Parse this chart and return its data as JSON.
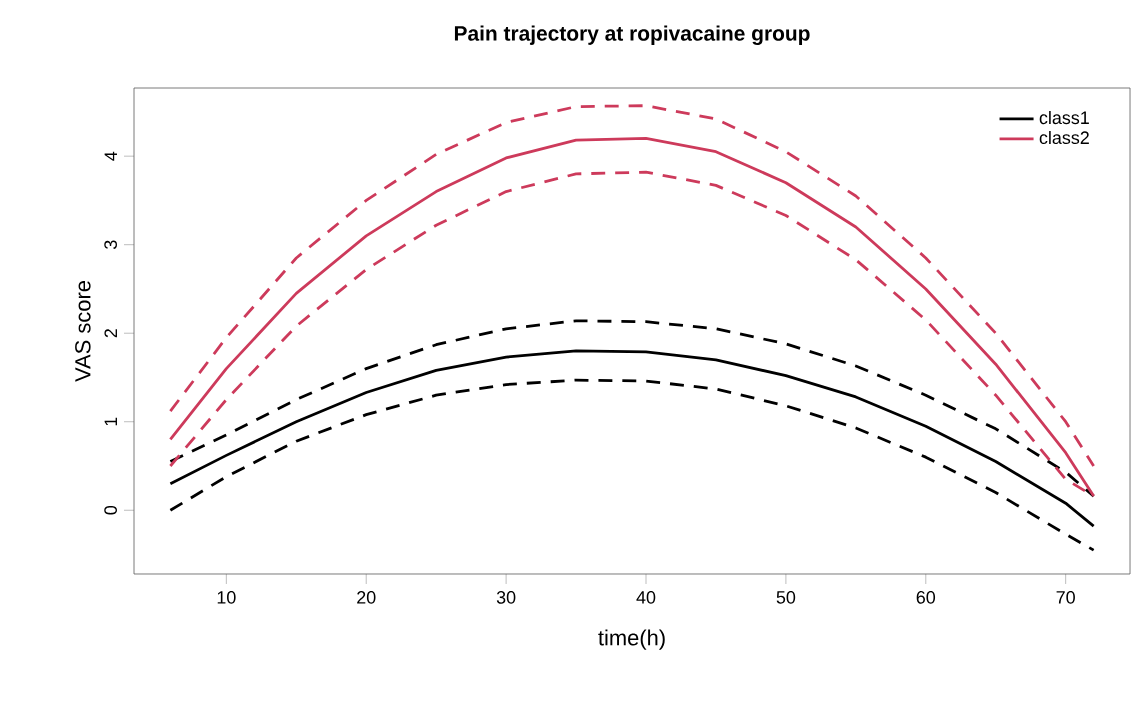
{
  "chart_data": {
    "type": "line",
    "title": "Pain trajectory at ropivacaine group",
    "xlabel": "time(h)",
    "ylabel": "VAS  score",
    "x": [
      6,
      10,
      15,
      20,
      25,
      30,
      35,
      40,
      45,
      50,
      55,
      60,
      65,
      70,
      72
    ],
    "xlim": [
      3.4,
      74.6
    ],
    "xticks": [
      10,
      20,
      30,
      40,
      50,
      60,
      70
    ],
    "ylim": [
      -0.72,
      4.77
    ],
    "yticks": [
      0,
      1,
      2,
      3,
      4
    ],
    "grid": false,
    "legend": "top right",
    "marker": "none",
    "series": [
      {
        "name": "class1",
        "color": "#000000",
        "line_style": "solid",
        "values": [
          0.3,
          0.62,
          1.0,
          1.33,
          1.58,
          1.73,
          1.8,
          1.79,
          1.7,
          1.52,
          1.28,
          0.95,
          0.55,
          0.08,
          -0.18
        ]
      },
      {
        "color": "#000000",
        "line_style": "dashed",
        "values": [
          0.55,
          0.85,
          1.25,
          1.6,
          1.87,
          2.05,
          2.14,
          2.13,
          2.05,
          1.88,
          1.63,
          1.3,
          0.92,
          0.43,
          0.16
        ]
      },
      {
        "color": "#000000",
        "line_style": "dashed",
        "values": [
          0.0,
          0.38,
          0.78,
          1.08,
          1.3,
          1.42,
          1.47,
          1.46,
          1.37,
          1.18,
          0.93,
          0.6,
          0.2,
          -0.27,
          -0.45
        ]
      },
      {
        "name": "class2",
        "color": "#cd3a5b",
        "line_style": "solid",
        "values": [
          0.8,
          1.6,
          2.45,
          3.1,
          3.6,
          3.98,
          4.18,
          4.2,
          4.05,
          3.7,
          3.2,
          2.5,
          1.65,
          0.65,
          0.16
        ]
      },
      {
        "color": "#cd3a5b",
        "line_style": "dashed",
        "values": [
          1.12,
          1.95,
          2.85,
          3.5,
          4.02,
          4.38,
          4.56,
          4.57,
          4.42,
          4.05,
          3.55,
          2.85,
          2.0,
          1.0,
          0.5
        ]
      },
      {
        "color": "#cd3a5b",
        "line_style": "dashed",
        "values": [
          0.5,
          1.25,
          2.08,
          2.72,
          3.22,
          3.6,
          3.8,
          3.82,
          3.67,
          3.33,
          2.83,
          2.15,
          1.3,
          0.35,
          0.16
        ]
      }
    ]
  }
}
